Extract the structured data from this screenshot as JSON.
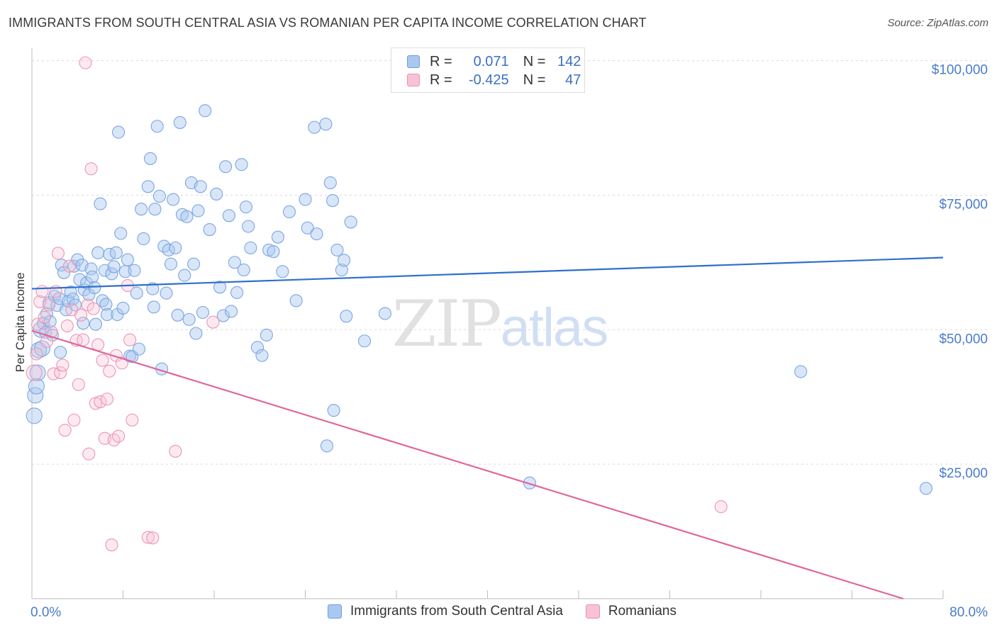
{
  "title": "IMMIGRANTS FROM SOUTH CENTRAL ASIA VS ROMANIAN PER CAPITA INCOME CORRELATION CHART",
  "source": "Source: ZipAtlas.com",
  "watermark": {
    "zip": "ZIP",
    "atlas": "atlas"
  },
  "colors": {
    "blue": "#6a9ee0",
    "blue_fill": "#aac8ef",
    "blue_line": "#2f6fcd",
    "pink": "#ec8fb0",
    "pink_fill": "#f7c2d4",
    "pink_line": "#e0679a",
    "accent_text": "#3b6fc2"
  },
  "legend": {
    "rows": [
      {
        "r_label": "R =",
        "r_value": "0.071",
        "n_label": "N =",
        "n_value": "142"
      },
      {
        "r_label": "R =",
        "r_value": "-0.425",
        "n_label": "N =",
        "n_value": "47"
      }
    ]
  },
  "bottom_legend": [
    "Immigrants from South Central Asia",
    "Romanians"
  ],
  "chart_data": {
    "type": "scatter",
    "title": "IMMIGRANTS FROM SOUTH CENTRAL ASIA VS ROMANIAN PER CAPITA INCOME CORRELATION CHART",
    "xlabel": "",
    "ylabel": "Per Capita Income",
    "xlim": [
      0,
      80
    ],
    "ylim": [
      0,
      101000
    ],
    "x_tick_labels": [
      "0.0%",
      "80.0%"
    ],
    "y_tick_labels": [
      "$25,000",
      "$50,000",
      "$75,000",
      "$100,000"
    ],
    "y_ticks": [
      25000,
      50000,
      75000,
      100000
    ],
    "grid": true,
    "legend_position": "top-center",
    "series": [
      {
        "name": "Immigrants from South Central Asia",
        "color": "#6a9ee0",
        "trend": {
          "x": [
            0,
            80
          ],
          "y": [
            57600,
            63400
          ]
        },
        "points": [
          [
            0.2,
            34000
          ],
          [
            0.3,
            37800
          ],
          [
            0.4,
            39500
          ],
          [
            0.5,
            42000
          ],
          [
            0.6,
            46200
          ],
          [
            0.8,
            50000
          ],
          [
            0.9,
            46500
          ],
          [
            1.0,
            51200
          ],
          [
            1.2,
            49500
          ],
          [
            1.3,
            53000
          ],
          [
            1.5,
            55000
          ],
          [
            1.6,
            51500
          ],
          [
            1.8,
            49000
          ],
          [
            2.0,
            56200
          ],
          [
            2.2,
            54500
          ],
          [
            2.4,
            55800
          ],
          [
            2.5,
            45800
          ],
          [
            2.6,
            62000
          ],
          [
            2.8,
            60600
          ],
          [
            3.0,
            53700
          ],
          [
            3.2,
            55300
          ],
          [
            3.4,
            57000
          ],
          [
            3.6,
            55700
          ],
          [
            3.7,
            61800
          ],
          [
            3.8,
            54600
          ],
          [
            4.0,
            63000
          ],
          [
            4.2,
            59300
          ],
          [
            4.4,
            62000
          ],
          [
            4.5,
            51200
          ],
          [
            4.6,
            57400
          ],
          [
            4.8,
            58700
          ],
          [
            5.0,
            56500
          ],
          [
            5.2,
            61300
          ],
          [
            5.3,
            59800
          ],
          [
            5.5,
            57800
          ],
          [
            5.6,
            51000
          ],
          [
            5.8,
            64300
          ],
          [
            6.0,
            73400
          ],
          [
            6.2,
            55400
          ],
          [
            6.4,
            61000
          ],
          [
            6.5,
            54700
          ],
          [
            6.6,
            52800
          ],
          [
            6.8,
            64000
          ],
          [
            7.0,
            60400
          ],
          [
            7.2,
            61700
          ],
          [
            7.4,
            64300
          ],
          [
            7.5,
            52800
          ],
          [
            7.6,
            86700
          ],
          [
            7.8,
            67900
          ],
          [
            8.0,
            54000
          ],
          [
            8.2,
            60800
          ],
          [
            8.4,
            63000
          ],
          [
            8.6,
            45100
          ],
          [
            8.8,
            45000
          ],
          [
            9.0,
            61000
          ],
          [
            9.2,
            56800
          ],
          [
            9.4,
            46400
          ],
          [
            9.6,
            72400
          ],
          [
            9.8,
            66900
          ],
          [
            10.2,
            76600
          ],
          [
            10.4,
            81800
          ],
          [
            10.6,
            57600
          ],
          [
            10.7,
            54200
          ],
          [
            10.8,
            72400
          ],
          [
            11.0,
            87800
          ],
          [
            11.2,
            74800
          ],
          [
            11.4,
            42700
          ],
          [
            11.6,
            65500
          ],
          [
            11.8,
            56800
          ],
          [
            12.0,
            64800
          ],
          [
            12.2,
            62200
          ],
          [
            12.4,
            74200
          ],
          [
            12.6,
            65200
          ],
          [
            12.8,
            52700
          ],
          [
            13.0,
            88500
          ],
          [
            13.2,
            71400
          ],
          [
            13.4,
            60100
          ],
          [
            13.6,
            71000
          ],
          [
            13.8,
            51900
          ],
          [
            14.0,
            77300
          ],
          [
            14.2,
            62200
          ],
          [
            14.4,
            49300
          ],
          [
            14.6,
            72100
          ],
          [
            14.8,
            76600
          ],
          [
            15.0,
            53200
          ],
          [
            15.2,
            90700
          ],
          [
            15.6,
            68600
          ],
          [
            16.2,
            75200
          ],
          [
            16.5,
            57900
          ],
          [
            16.8,
            52600
          ],
          [
            17.0,
            80300
          ],
          [
            17.3,
            71200
          ],
          [
            17.5,
            53400
          ],
          [
            17.8,
            62500
          ],
          [
            18.0,
            56900
          ],
          [
            18.4,
            80700
          ],
          [
            18.6,
            61100
          ],
          [
            18.8,
            72800
          ],
          [
            19.0,
            69200
          ],
          [
            19.2,
            65200
          ],
          [
            19.8,
            46700
          ],
          [
            20.2,
            45200
          ],
          [
            20.6,
            49000
          ],
          [
            20.8,
            64800
          ],
          [
            21.2,
            64500
          ],
          [
            21.6,
            67200
          ],
          [
            22.0,
            60800
          ],
          [
            22.6,
            71900
          ],
          [
            23.2,
            55400
          ],
          [
            24.0,
            74200
          ],
          [
            24.2,
            68900
          ],
          [
            24.8,
            87600
          ],
          [
            25.0,
            67800
          ],
          [
            25.8,
            88200
          ],
          [
            25.9,
            28400
          ],
          [
            26.2,
            77300
          ],
          [
            26.4,
            74000
          ],
          [
            26.5,
            35000
          ],
          [
            26.8,
            64800
          ],
          [
            27.2,
            61100
          ],
          [
            27.4,
            62900
          ],
          [
            27.6,
            52500
          ],
          [
            28.0,
            70000
          ],
          [
            29.2,
            47900
          ],
          [
            31.0,
            53000
          ],
          [
            43.7,
            21500
          ],
          [
            67.5,
            42200
          ],
          [
            78.5,
            20500
          ]
        ]
      },
      {
        "name": "Romanians",
        "color": "#ec8fb0",
        "trend": {
          "x": [
            0,
            76.5
          ],
          "y": [
            49800,
            0
          ]
        },
        "points": [
          [
            0.2,
            42000
          ],
          [
            0.4,
            45500
          ],
          [
            0.5,
            51000
          ],
          [
            0.7,
            55200
          ],
          [
            0.9,
            57100
          ],
          [
            1.1,
            52300
          ],
          [
            1.3,
            47800
          ],
          [
            1.5,
            54600
          ],
          [
            1.7,
            49600
          ],
          [
            1.9,
            41800
          ],
          [
            2.1,
            57100
          ],
          [
            2.3,
            64200
          ],
          [
            2.5,
            42000
          ],
          [
            2.7,
            43400
          ],
          [
            2.9,
            31300
          ],
          [
            3.1,
            50700
          ],
          [
            3.3,
            61800
          ],
          [
            3.5,
            53700
          ],
          [
            3.7,
            33200
          ],
          [
            3.9,
            48000
          ],
          [
            4.1,
            39800
          ],
          [
            4.3,
            52700
          ],
          [
            4.5,
            48100
          ],
          [
            4.7,
            99600
          ],
          [
            4.9,
            54600
          ],
          [
            5.0,
            26900
          ],
          [
            5.2,
            79900
          ],
          [
            5.4,
            53900
          ],
          [
            5.6,
            36300
          ],
          [
            5.8,
            47200
          ],
          [
            6.0,
            36600
          ],
          [
            6.2,
            44300
          ],
          [
            6.4,
            29800
          ],
          [
            6.6,
            37100
          ],
          [
            6.8,
            42300
          ],
          [
            7.0,
            10000
          ],
          [
            7.2,
            29500
          ],
          [
            7.4,
            45200
          ],
          [
            7.6,
            30200
          ],
          [
            7.9,
            43800
          ],
          [
            8.4,
            58200
          ],
          [
            8.6,
            48100
          ],
          [
            8.8,
            33200
          ],
          [
            10.2,
            11400
          ],
          [
            10.6,
            11300
          ],
          [
            12.6,
            27400
          ],
          [
            15.9,
            51400
          ],
          [
            60.5,
            17100
          ]
        ]
      }
    ]
  }
}
